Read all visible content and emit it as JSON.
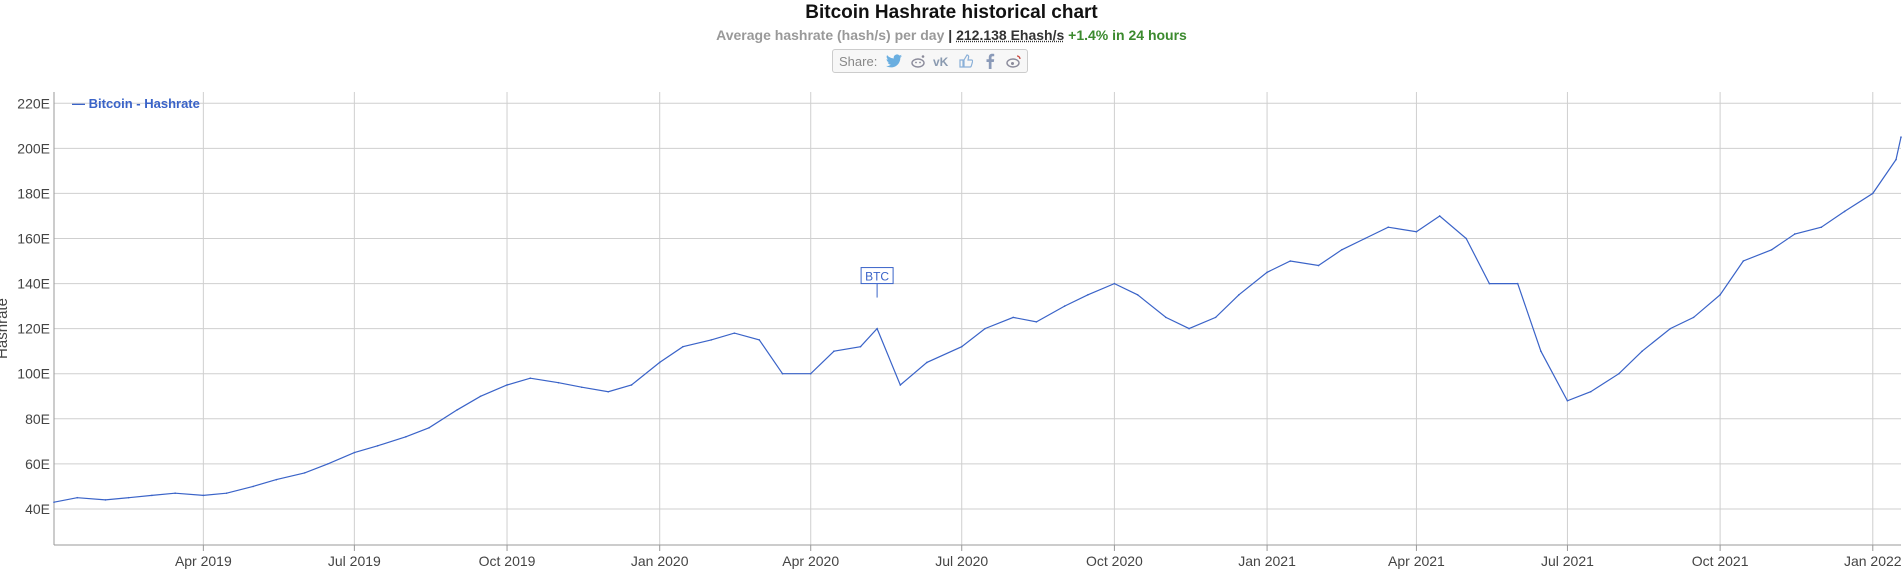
{
  "header": {
    "title": "Bitcoin Hashrate historical chart",
    "subtitle_prefix": "Average hashrate (hash/s) per day",
    "separator": " | ",
    "current_value": "212.138 Ehash/s",
    "change_text": "+1.4% in 24 hours"
  },
  "share": {
    "label": "Share:",
    "icons": [
      "twitter-icon",
      "reddit-icon",
      "vk-icon",
      "like-icon",
      "facebook-icon",
      "weibo-icon"
    ]
  },
  "chart_data": {
    "type": "line",
    "legend": "— Bitcoin - Hashrate",
    "legend_position": "top-left",
    "ylabel": "Hashrate",
    "ylim": [
      24,
      225
    ],
    "xlim": [
      "2019-01-01",
      "2022-01-18"
    ],
    "grid": true,
    "color": "#3a63c8",
    "yticks": [
      40,
      60,
      80,
      100,
      120,
      140,
      160,
      180,
      200,
      220
    ],
    "ytick_labels": [
      "40E",
      "60E",
      "80E",
      "100E",
      "120E",
      "140E",
      "160E",
      "180E",
      "200E",
      "220E"
    ],
    "xticks": [
      {
        "date": "2019-04-01",
        "label": "Apr 2019"
      },
      {
        "date": "2019-07-01",
        "label": "Jul 2019"
      },
      {
        "date": "2019-10-01",
        "label": "Oct 2019"
      },
      {
        "date": "2020-01-01",
        "label": "Jan 2020"
      },
      {
        "date": "2020-04-01",
        "label": "Apr 2020"
      },
      {
        "date": "2020-07-01",
        "label": "Jul 2020"
      },
      {
        "date": "2020-10-01",
        "label": "Oct 2020"
      },
      {
        "date": "2021-01-01",
        "label": "Jan 2021"
      },
      {
        "date": "2021-04-01",
        "label": "Apr 2021"
      },
      {
        "date": "2021-07-01",
        "label": "Jul 2021"
      },
      {
        "date": "2021-10-01",
        "label": "Oct 2021"
      },
      {
        "date": "2022-01-01",
        "label": "Jan 2022"
      }
    ],
    "annotation": {
      "text": "BTC",
      "date": "2020-05-11",
      "value": 140
    },
    "series": [
      {
        "name": "Bitcoin - Hashrate",
        "points": [
          [
            "2019-01-01",
            43
          ],
          [
            "2019-01-15",
            45
          ],
          [
            "2019-02-01",
            44
          ],
          [
            "2019-02-15",
            45
          ],
          [
            "2019-03-01",
            46
          ],
          [
            "2019-03-15",
            47
          ],
          [
            "2019-04-01",
            46
          ],
          [
            "2019-04-15",
            47
          ],
          [
            "2019-05-01",
            50
          ],
          [
            "2019-05-15",
            53
          ],
          [
            "2019-06-01",
            56
          ],
          [
            "2019-06-15",
            60
          ],
          [
            "2019-07-01",
            65
          ],
          [
            "2019-07-15",
            68
          ],
          [
            "2019-08-01",
            72
          ],
          [
            "2019-08-15",
            76
          ],
          [
            "2019-09-01",
            84
          ],
          [
            "2019-09-15",
            90
          ],
          [
            "2019-10-01",
            95
          ],
          [
            "2019-10-15",
            98
          ],
          [
            "2019-11-01",
            96
          ],
          [
            "2019-11-15",
            94
          ],
          [
            "2019-12-01",
            92
          ],
          [
            "2019-12-15",
            95
          ],
          [
            "2020-01-01",
            105
          ],
          [
            "2020-01-15",
            112
          ],
          [
            "2020-02-01",
            115
          ],
          [
            "2020-02-15",
            118
          ],
          [
            "2020-03-01",
            115
          ],
          [
            "2020-03-15",
            100
          ],
          [
            "2020-04-01",
            100
          ],
          [
            "2020-04-15",
            110
          ],
          [
            "2020-05-01",
            112
          ],
          [
            "2020-05-11",
            120
          ],
          [
            "2020-05-25",
            95
          ],
          [
            "2020-06-10",
            105
          ],
          [
            "2020-07-01",
            112
          ],
          [
            "2020-07-15",
            120
          ],
          [
            "2020-08-01",
            125
          ],
          [
            "2020-08-15",
            123
          ],
          [
            "2020-09-01",
            130
          ],
          [
            "2020-09-15",
            135
          ],
          [
            "2020-10-01",
            140
          ],
          [
            "2020-10-15",
            135
          ],
          [
            "2020-11-01",
            125
          ],
          [
            "2020-11-15",
            120
          ],
          [
            "2020-12-01",
            125
          ],
          [
            "2020-12-15",
            135
          ],
          [
            "2021-01-01",
            145
          ],
          [
            "2021-01-15",
            150
          ],
          [
            "2021-02-01",
            148
          ],
          [
            "2021-02-15",
            155
          ],
          [
            "2021-03-01",
            160
          ],
          [
            "2021-03-15",
            165
          ],
          [
            "2021-04-01",
            163
          ],
          [
            "2021-04-15",
            170
          ],
          [
            "2021-05-01",
            160
          ],
          [
            "2021-05-15",
            140
          ],
          [
            "2021-06-01",
            140
          ],
          [
            "2021-06-15",
            110
          ],
          [
            "2021-07-01",
            88
          ],
          [
            "2021-07-15",
            92
          ],
          [
            "2021-08-01",
            100
          ],
          [
            "2021-08-15",
            110
          ],
          [
            "2021-09-01",
            120
          ],
          [
            "2021-09-15",
            125
          ],
          [
            "2021-10-01",
            135
          ],
          [
            "2021-10-15",
            150
          ],
          [
            "2021-11-01",
            155
          ],
          [
            "2021-11-15",
            162
          ],
          [
            "2021-12-01",
            165
          ],
          [
            "2021-12-15",
            172
          ],
          [
            "2022-01-01",
            180
          ],
          [
            "2022-01-15",
            195
          ],
          [
            "2022-01-18",
            205
          ]
        ]
      }
    ]
  }
}
